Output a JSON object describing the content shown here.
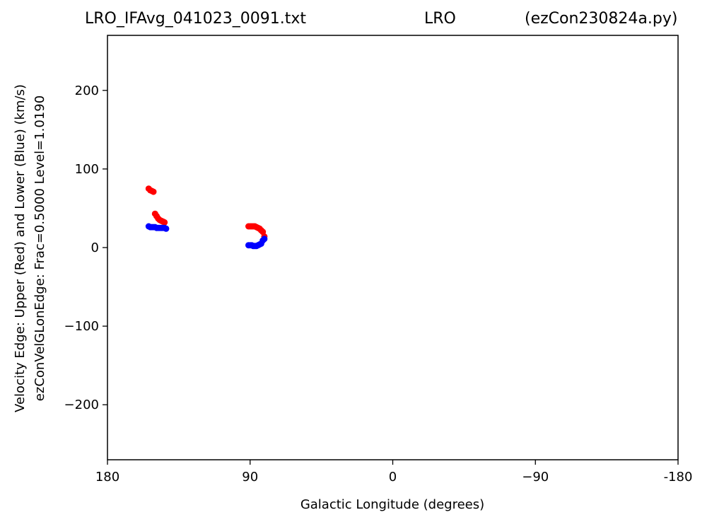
{
  "header": {
    "title_left": "LRO_IFAvg_041023_0091.txt",
    "title_center": "LRO",
    "title_right": "(ezCon230824a.py)"
  },
  "chart_data": {
    "type": "scatter",
    "xlabel": "Galactic Longitude (degrees)",
    "ylabel_line1": "Velocity Edge: Upper (Red) and Lower (Blue) (km/s)",
    "ylabel_line2": "ezConVelGLonEdge: Frac=0.5000 Level=1.0190",
    "xlim": [
      180,
      -180
    ],
    "ylim": [
      -270,
      270
    ],
    "xticks": [
      180,
      90,
      0,
      -90,
      -180
    ],
    "xtick_labels": [
      "180",
      "90",
      "0",
      "−90",
      "-180"
    ],
    "yticks": [
      200,
      100,
      0,
      -100,
      -200
    ],
    "ytick_labels": [
      "200",
      "100",
      "0",
      "−100",
      "−200"
    ],
    "grid": false,
    "colors": {
      "upper": "#ff0000",
      "lower": "#0000ff",
      "axes": "#000000"
    },
    "series": [
      {
        "name": "Upper",
        "color": "#ff0000",
        "points": [
          [
            154,
            75
          ],
          [
            153,
            73
          ],
          [
            152,
            72
          ],
          [
            151,
            71
          ],
          [
            150,
            43
          ],
          [
            149,
            40
          ],
          [
            148,
            37
          ],
          [
            147,
            35
          ],
          [
            146,
            34
          ],
          [
            145,
            33
          ],
          [
            144,
            32
          ],
          [
            91,
            27
          ],
          [
            90,
            27
          ],
          [
            89,
            27
          ],
          [
            88,
            27
          ],
          [
            87,
            27
          ],
          [
            86,
            26
          ],
          [
            85,
            25
          ],
          [
            84,
            24
          ],
          [
            83,
            22
          ],
          [
            82,
            20
          ],
          [
            81,
            14
          ]
        ]
      },
      {
        "name": "Lower",
        "color": "#0000ff",
        "points": [
          [
            154,
            27
          ],
          [
            153,
            26
          ],
          [
            152,
            26
          ],
          [
            151,
            26
          ],
          [
            150,
            26
          ],
          [
            149,
            25
          ],
          [
            148,
            25
          ],
          [
            147,
            25
          ],
          [
            146,
            25
          ],
          [
            145,
            25
          ],
          [
            144,
            25
          ],
          [
            143,
            24
          ],
          [
            91,
            3
          ],
          [
            90,
            3
          ],
          [
            89,
            3
          ],
          [
            88,
            2
          ],
          [
            87,
            2
          ],
          [
            86,
            2
          ],
          [
            85,
            3
          ],
          [
            84,
            4
          ],
          [
            83,
            5
          ],
          [
            82,
            9
          ],
          [
            81,
            11
          ]
        ]
      }
    ]
  }
}
